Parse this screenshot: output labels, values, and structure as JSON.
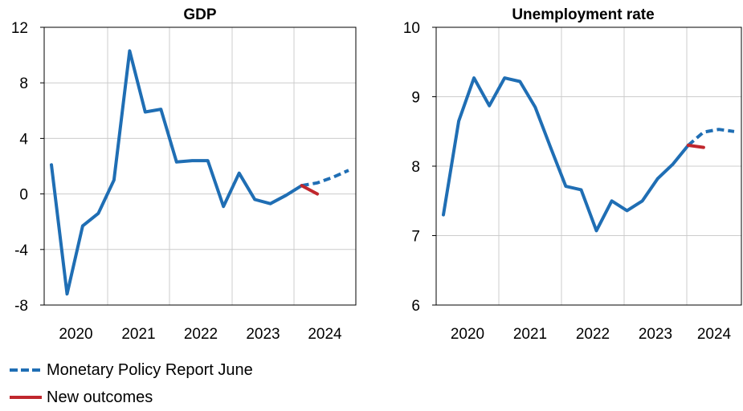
{
  "chart_data": [
    {
      "type": "line",
      "title": "GDP",
      "xlabel": "",
      "ylabel": "",
      "ylim": [
        -8,
        12
      ],
      "yticks": [
        "12",
        "8",
        "4",
        "0",
        "-4",
        "-8"
      ],
      "xtick_labels": [
        "2020",
        "2021",
        "2022",
        "2023",
        "2024"
      ],
      "grid": true,
      "series": [
        {
          "name": "Monetary Policy Report June",
          "color": "#1f6eb4",
          "style": "solid",
          "x": [
            "2019Q4",
            "2020Q1",
            "2020Q2",
            "2020Q3",
            "2020Q4",
            "2021Q1",
            "2021Q2",
            "2021Q3",
            "2021Q4",
            "2022Q1",
            "2022Q2",
            "2022Q3",
            "2022Q4",
            "2023Q1",
            "2023Q2",
            "2023Q3",
            "2023Q4"
          ],
          "values": [
            2.1,
            -7.2,
            -2.3,
            -1.4,
            1.0,
            10.3,
            5.9,
            6.1,
            2.3,
            2.4,
            2.4,
            -0.9,
            1.5,
            -0.4,
            -0.7,
            -0.1,
            0.6
          ]
        },
        {
          "name": "Monetary Policy Report June",
          "color": "#1f6eb4",
          "style": "dashed",
          "x": [
            "2023Q4",
            "2024Q1",
            "2024Q2",
            "2024Q3"
          ],
          "values": [
            0.6,
            0.8,
            1.2,
            1.7
          ]
        },
        {
          "name": "New outcomes",
          "color": "#c0272d",
          "style": "solid",
          "x": [
            "2023Q4",
            "2024Q1"
          ],
          "values": [
            0.6,
            0.0
          ]
        }
      ]
    },
    {
      "type": "line",
      "title": "Unemployment rate",
      "xlabel": "",
      "ylabel": "",
      "ylim": [
        6,
        10
      ],
      "yticks": [
        "10",
        "9",
        "8",
        "7",
        "6"
      ],
      "xtick_labels": [
        "2020",
        "2021",
        "2022",
        "2023",
        "2024"
      ],
      "grid": true,
      "series": [
        {
          "name": "Monetary Policy Report June",
          "color": "#1f6eb4",
          "style": "solid",
          "x": [
            "2019Q4",
            "2020Q1",
            "2020Q2",
            "2020Q3",
            "2020Q4",
            "2021Q1",
            "2021Q2",
            "2021Q3",
            "2021Q4",
            "2022Q1",
            "2022Q2",
            "2022Q3",
            "2022Q4",
            "2023Q1",
            "2023Q2",
            "2023Q3",
            "2023Q4"
          ],
          "values": [
            7.3,
            8.65,
            9.27,
            8.87,
            9.27,
            9.22,
            8.85,
            8.27,
            7.71,
            7.66,
            7.07,
            7.5,
            7.36,
            7.5,
            7.82,
            8.03,
            8.3
          ]
        },
        {
          "name": "Monetary Policy Report June",
          "color": "#1f6eb4",
          "style": "dashed",
          "x": [
            "2023Q4",
            "2024Q1",
            "2024Q2",
            "2024Q3"
          ],
          "values": [
            8.3,
            8.49,
            8.53,
            8.5
          ]
        },
        {
          "name": "New outcomes",
          "color": "#c0272d",
          "style": "solid",
          "x": [
            "2023Q4",
            "2024Q1"
          ],
          "values": [
            8.3,
            8.27
          ]
        }
      ]
    }
  ],
  "legend": {
    "items": [
      {
        "label": "Monetary Policy Report June",
        "color": "#1f6eb4",
        "style": "dashed"
      },
      {
        "label": "New outcomes",
        "color": "#c0272d",
        "style": "solid"
      }
    ]
  }
}
